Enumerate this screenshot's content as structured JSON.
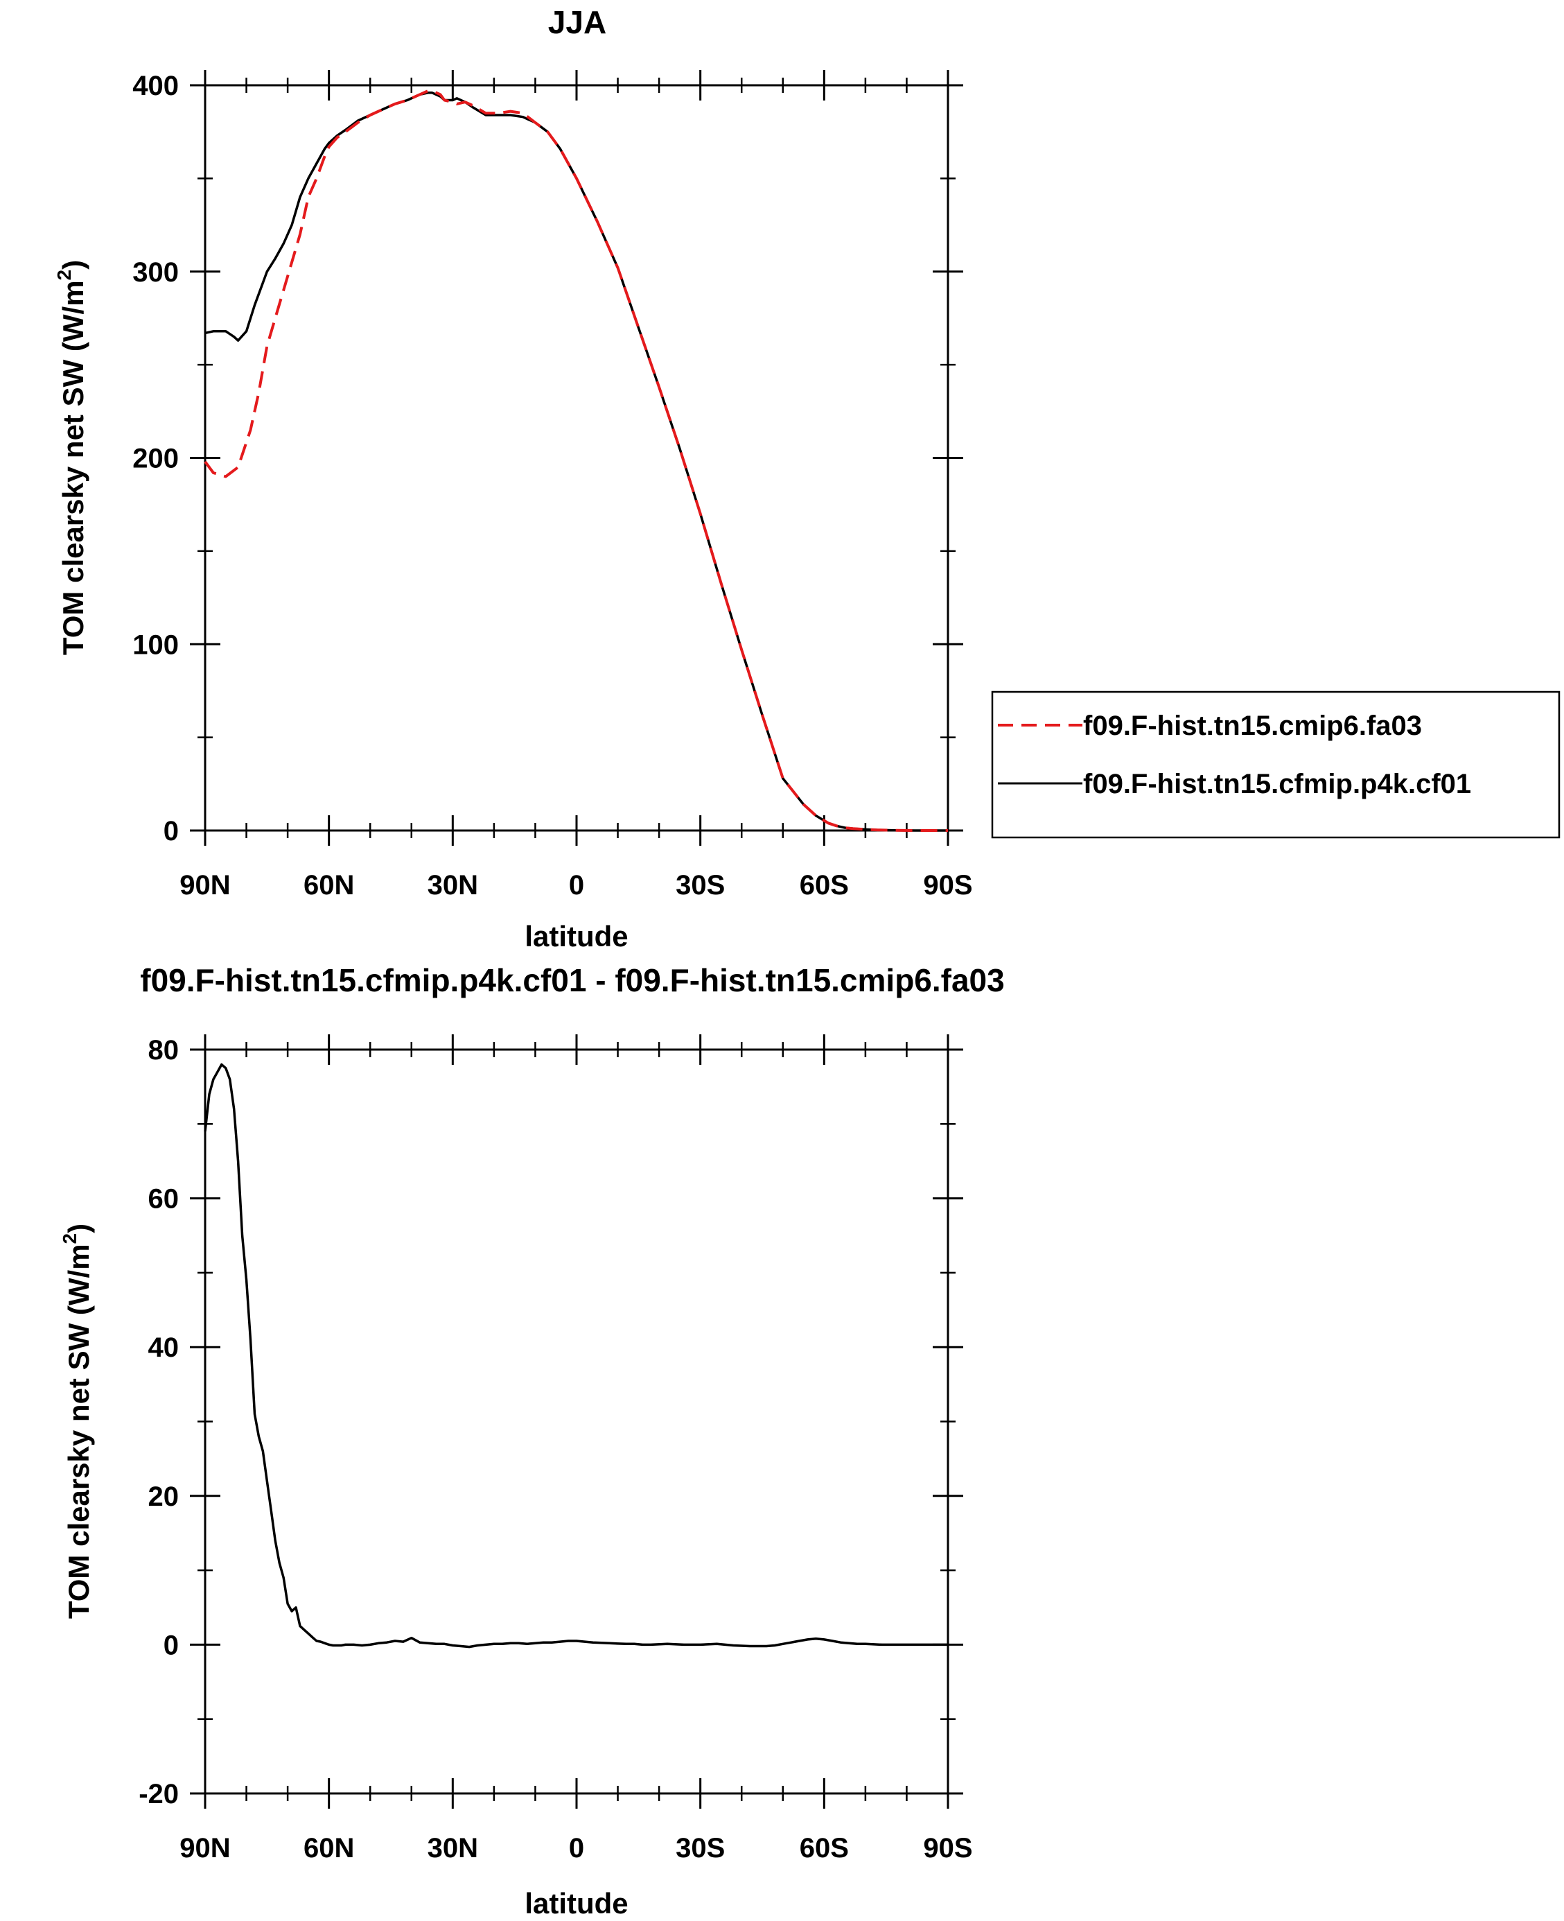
{
  "chart_data": [
    {
      "type": "line",
      "title": "JJA",
      "xlabel": "latitude",
      "ylabel": "TOM clearsky net SW (W/m",
      "ylabel_sup": "2",
      "ylabel_close": ")",
      "xlim": [
        90,
        -90
      ],
      "ylim": [
        0,
        400
      ],
      "xticks": [
        90,
        60,
        30,
        0,
        -30,
        -60,
        -90
      ],
      "xtick_labels": [
        "90N",
        "60N",
        "30N",
        "0",
        "30S",
        "60S",
        "90S"
      ],
      "yticks": [
        0,
        100,
        200,
        300,
        400
      ],
      "ytick_labels": [
        "0",
        "100",
        "200",
        "300",
        "400"
      ],
      "legend": {
        "placement": "right",
        "entries": [
          "f09.F-hist.tn15.cmip6.fa03",
          "f09.F-hist.tn15.cfmip.p4k.cf01"
        ]
      },
      "series": [
        {
          "name": "f09.F-hist.tn15.cmip6.fa03",
          "color": "#e41a1c",
          "dash": "dashed",
          "x": [
            90,
            88,
            85,
            82,
            79,
            77,
            75,
            73,
            71,
            69,
            67,
            65,
            63,
            61,
            60,
            58,
            56,
            53,
            50,
            47,
            44,
            41,
            38,
            36,
            35,
            33,
            32,
            30,
            29,
            27,
            25,
            22,
            19,
            16,
            13,
            10,
            7,
            4,
            0,
            -5,
            -10,
            -15,
            -20,
            -25,
            -30,
            -35,
            -40,
            -45,
            -50,
            -55,
            -58,
            -61,
            -63,
            -65,
            -67,
            -70,
            -73,
            -77,
            -82,
            -86,
            -90
          ],
          "y": [
            198,
            192,
            190,
            195,
            215,
            235,
            260,
            275,
            290,
            305,
            320,
            340,
            350,
            362,
            367,
            372,
            375,
            380,
            384,
            387,
            390,
            392,
            395,
            397,
            397,
            395,
            392,
            391,
            390,
            391,
            389,
            385,
            385,
            386,
            385,
            380,
            375,
            366,
            350,
            327,
            302,
            270,
            238,
            205,
            170,
            133,
            97,
            62,
            28,
            14,
            8,
            4,
            2.5,
            1.5,
            1,
            0.6,
            0.3,
            0.1,
            0,
            0,
            0
          ]
        },
        {
          "name": "f09.F-hist.tn15.cfmip.p4k.cf01",
          "color": "#000000",
          "dash": "solid",
          "x": [
            90,
            88,
            85,
            83,
            82,
            80,
            78,
            75,
            73,
            71,
            69,
            67,
            65,
            63,
            61,
            60,
            58,
            56,
            53,
            50,
            47,
            44,
            41,
            38,
            36,
            35,
            33,
            32,
            30,
            29,
            27,
            25,
            22,
            19,
            16,
            13,
            10,
            7,
            4,
            0,
            -5,
            -10,
            -15,
            -20,
            -25,
            -30,
            -35,
            -40,
            -45,
            -50,
            -55,
            -58,
            -61,
            -63,
            -65,
            -67,
            -70,
            -73,
            -77,
            -82,
            -86,
            -90
          ],
          "y": [
            267,
            268,
            268,
            265,
            263,
            268,
            282,
            300,
            307,
            315,
            325,
            340,
            350,
            358,
            366,
            369,
            373,
            376,
            381,
            384,
            387,
            390,
            392,
            395,
            396,
            396,
            394,
            392,
            392,
            393,
            391,
            388,
            384,
            384,
            384,
            383,
            380,
            375,
            366,
            350,
            327,
            302,
            270,
            238,
            205,
            170,
            133,
            97,
            62,
            28,
            14,
            8,
            4,
            2.5,
            1.5,
            1,
            0.6,
            0.3,
            0.1,
            0,
            0,
            0
          ]
        }
      ]
    },
    {
      "type": "line",
      "title": "f09.F-hist.tn15.cfmip.p4k.cf01 - f09.F-hist.tn15.cmip6.fa03",
      "xlabel": "latitude",
      "ylabel": "TOM clearsky net SW (W/m",
      "ylabel_sup": "2",
      "ylabel_close": ")",
      "xlim": [
        90,
        -90
      ],
      "ylim": [
        -20,
        80
      ],
      "xticks": [
        90,
        60,
        30,
        0,
        -30,
        -60,
        -90
      ],
      "xtick_labels": [
        "90N",
        "60N",
        "30N",
        "0",
        "30S",
        "60S",
        "90S"
      ],
      "yticks": [
        -20,
        0,
        20,
        40,
        60,
        80
      ],
      "ytick_labels": [
        "-20",
        "0",
        "20",
        "40",
        "60",
        "80"
      ],
      "series": [
        {
          "color": "#000000",
          "dash": "solid",
          "x": [
            90,
            89,
            88,
            87,
            86,
            85,
            84,
            83,
            82,
            81,
            80,
            79,
            78,
            77,
            76,
            75,
            74,
            73,
            72,
            71,
            70,
            69,
            68,
            67,
            66,
            65,
            64,
            63,
            62,
            61,
            60,
            59,
            58,
            57,
            56,
            54,
            52,
            50,
            48,
            46,
            44,
            42,
            40,
            38,
            36,
            34,
            32,
            30,
            28,
            26,
            24,
            22,
            20,
            18,
            16,
            14,
            12,
            10,
            8,
            6,
            4,
            2,
            0,
            -4,
            -8,
            -12,
            -14,
            -16,
            -18,
            -22,
            -26,
            -30,
            -34,
            -38,
            -42,
            -46,
            -48,
            -50,
            -52,
            -54,
            -56,
            -58,
            -60,
            -62,
            -64,
            -66,
            -68,
            -70,
            -74,
            -78,
            -82,
            -86,
            -90
          ],
          "y": [
            69,
            74,
            76,
            77,
            78,
            77.5,
            76,
            72,
            65,
            55,
            49,
            41,
            31,
            28,
            26,
            22,
            18,
            14,
            11,
            9,
            5.5,
            4.5,
            5,
            2.5,
            2,
            1.5,
            1,
            0.5,
            0.4,
            0.2,
            0,
            -0.1,
            -0.1,
            -0.1,
            0,
            0,
            -0.1,
            0,
            0.2,
            0.3,
            0.5,
            0.4,
            0.9,
            0.3,
            0.2,
            0.1,
            0.1,
            -0.1,
            -0.2,
            -0.3,
            -0.1,
            0,
            0.1,
            0.1,
            0.2,
            0.2,
            0.1,
            0.2,
            0.3,
            0.3,
            0.4,
            0.5,
            0.5,
            0.3,
            0.2,
            0.1,
            0.1,
            0,
            0,
            0.1,
            0,
            0,
            0.1,
            -0.1,
            -0.2,
            -0.2,
            -0.1,
            0.1,
            0.3,
            0.5,
            0.7,
            0.8,
            0.7,
            0.5,
            0.3,
            0.2,
            0.1,
            0.1,
            0,
            0,
            0,
            0,
            0
          ]
        }
      ]
    }
  ]
}
